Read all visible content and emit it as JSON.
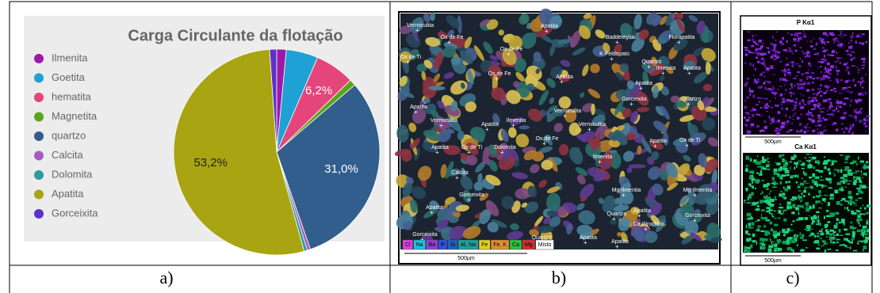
{
  "chart_data": {
    "type": "pie",
    "title": "Carga Circulante da flotação",
    "categories": [
      "Ilmenita",
      "Goetita",
      "hematita",
      "Magnetita",
      "quartzo",
      "Calcita",
      "Dolomita",
      "Apatita",
      "Gorceixita"
    ],
    "values": [
      1.5,
      5,
      6.2,
      1,
      31.0,
      0.5,
      0.5,
      53.2,
      1.1
    ],
    "value_labels": [
      null,
      null,
      "6,2%",
      null,
      "31,0%",
      null,
      null,
      "53,2%",
      null
    ],
    "colors": [
      "#9c1aa6",
      "#1ea1d4",
      "#e4457a",
      "#5aa51d",
      "#315e8c",
      "#a65bbf",
      "#2c9b9b",
      "#a9a412",
      "#5c33c9"
    ]
  },
  "captions": [
    "a)",
    "b)",
    "c)"
  ],
  "mineral_map": {
    "labels": [
      "Vermiculita",
      "Ox de Fe",
      "Apatita",
      "Baddeleyita",
      "Florapatita",
      "K-Feldspato",
      "Ox de Fe",
      "Ox de Ti",
      "Quartzo",
      "Ilmenita",
      "Apatita",
      "Ox de Fe",
      "Apatita",
      "Apatita",
      "Gorceixita",
      "Quartzo",
      "Apatita",
      "Vermiculita",
      "Vermiculita",
      "Ilmenita",
      "Apatita",
      "Vermiculita",
      "Ox de Fe",
      "Ox de Ti",
      "Apatita",
      "Ox de Ti",
      "Dolomita",
      "Ilmenita",
      "Apatita",
      "Calcita",
      "Gorceixita",
      "Apatita",
      "Mg-Ilmenita",
      "Mg-Ilmenita",
      "Quartzo",
      "Apatita",
      "Gorceixita",
      "Ca-Pirocloro",
      "Gorceixita",
      "Quartzo",
      "Apatita",
      "Apatita"
    ],
    "legend": [
      "Cl",
      "Na",
      "Ba",
      "P",
      "Si",
      "Al, Na",
      "Fe",
      "Fe, K",
      "Ca",
      "Mg",
      "Misto"
    ],
    "scale": "500µm"
  },
  "element_maps": [
    {
      "title": "P Kα1",
      "scale": "500µm"
    },
    {
      "title": "Ca Kα1",
      "scale": "500µm"
    }
  ]
}
